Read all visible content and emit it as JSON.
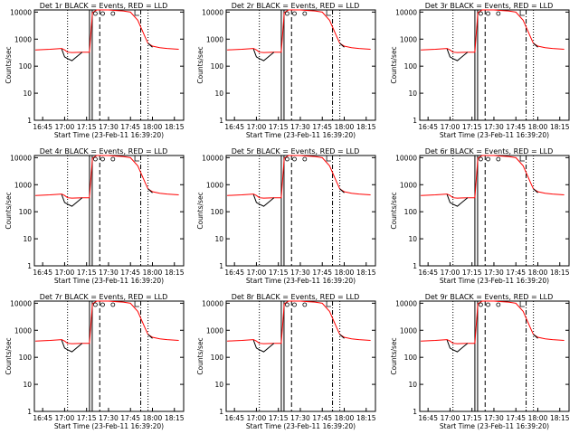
{
  "page": {
    "xlabel": "Start Time (23-Feb-11 16:39:20)",
    "ylabel": "Counts/sec",
    "x_tick_labels": [
      "16:45",
      "17:00",
      "17:15",
      "17:30",
      "17:45",
      "18:00",
      "18:15"
    ],
    "y_tick_labels": [
      "1",
      "10",
      "100",
      "1000",
      "10000"
    ]
  },
  "colors": {
    "events": "#000000",
    "lld": "#ff0000",
    "background": "#ffffff",
    "markers": "#000000"
  },
  "chart_data": [
    {
      "title": "Det 1r BLACK = Events, RED = LLD",
      "type": "line",
      "xlabel": "Start Time (23-Feb-11 16:39:20)",
      "ylabel": "Counts/sec",
      "y_scale": "log",
      "ylim": [
        1,
        12000
      ],
      "series": [
        {
          "values_time": [
            "16:40",
            "16:50",
            "16:58",
            "17:00",
            "17:02",
            "17:05",
            "17:12",
            "17:17",
            "17:19",
            "17:22",
            "17:25",
            "17:27",
            "17:30",
            "17:35",
            "17:40",
            "17:45",
            "17:50",
            "17:55",
            "17:57",
            "18:00",
            "18:05",
            "18:10",
            "18:18"
          ],
          "lld": [
            400,
            420,
            450,
            400,
            330,
            320,
            330,
            330,
            9500,
            12000,
            12000,
            12000,
            12000,
            11500,
            11000,
            10000,
            5000,
            1200,
            700,
            550,
            480,
            450,
            420
          ],
          "events": [
            null,
            null,
            430,
            220,
            190,
            160,
            330,
            null,
            null,
            null,
            null,
            null,
            null,
            null,
            null,
            null,
            null,
            null,
            700,
            500,
            null,
            null,
            null
          ]
        }
      ]
    },
    {
      "title": "Det 2r BLACK = Events, RED = LLD",
      "type": "line",
      "y_scale": "log"
    },
    {
      "title": "Det 3r BLACK = Events, RED = LLD",
      "type": "line",
      "y_scale": "log"
    },
    {
      "title": "Det 4r BLACK = Events, RED = LLD",
      "type": "line",
      "y_scale": "log"
    },
    {
      "title": "Det 5r BLACK = Events, RED = LLD",
      "type": "line",
      "y_scale": "log"
    },
    {
      "title": "Det 6r BLACK = Events, RED = LLD",
      "type": "line",
      "y_scale": "log"
    },
    {
      "title": "Det 7r BLACK = Events, RED = LLD",
      "type": "line",
      "y_scale": "log"
    },
    {
      "title": "Det 8r BLACK = Events, RED = LLD",
      "type": "line",
      "y_scale": "log"
    },
    {
      "title": "Det 9r BLACK = Events, RED = LLD",
      "type": "line",
      "y_scale": "log"
    }
  ]
}
